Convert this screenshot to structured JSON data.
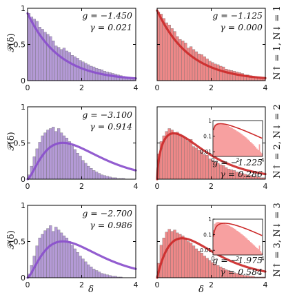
{
  "figure": {
    "ylabel": "𝒫(δ)",
    "xlabel": "δ",
    "row_labels": [
      "N↑ = 1, N↓ = 1",
      "N↑ = 2, N↓ = 2",
      "N↑ = 3, N↓ = 3"
    ],
    "colors": {
      "purple_bar": "#b49ad6",
      "purple_line": "#8a4fcc",
      "red_bar": "#ee8888",
      "red_line": "#cc2a2a",
      "inset_fill": "#f7a0a0"
    }
  },
  "chart_data": [
    {
      "type": "bar",
      "panel": "row1-left",
      "xlim": [
        0,
        4
      ],
      "ylim": [
        0,
        1
      ],
      "xticks": [
        "0",
        "2",
        "4"
      ],
      "yticks": [
        "0",
        "0.5",
        "1"
      ],
      "annotation": [
        "g = −1.450",
        "γ = 0.021"
      ],
      "bin_width": 0.1,
      "values": [
        0.93,
        0.88,
        0.85,
        0.82,
        0.74,
        0.71,
        0.67,
        0.64,
        0.61,
        0.55,
        0.48,
        0.46,
        0.43,
        0.45,
        0.41,
        0.39,
        0.35,
        0.33,
        0.31,
        0.28,
        0.26,
        0.24,
        0.22,
        0.2,
        0.19,
        0.17,
        0.16,
        0.15,
        0.13,
        0.12,
        0.11,
        0.1,
        0.09,
        0.08,
        0.07,
        0.06,
        0.05,
        0.04,
        0.03,
        0.02
      ],
      "fit": {
        "kind": "exp",
        "a": 0.93,
        "b": 0.85
      }
    },
    {
      "type": "bar",
      "panel": "row1-right",
      "xlim": [
        0,
        4
      ],
      "ylim": [
        0,
        1
      ],
      "xticks": [
        "0",
        "2",
        "4"
      ],
      "yticks": [],
      "annotation": [
        "g = −1.125",
        "γ = 0.000"
      ],
      "bin_width": 0.1,
      "values": [
        0.95,
        0.92,
        0.86,
        0.8,
        0.77,
        0.72,
        0.68,
        0.61,
        0.57,
        0.55,
        0.52,
        0.45,
        0.47,
        0.43,
        0.4,
        0.37,
        0.36,
        0.33,
        0.3,
        0.27,
        0.25,
        0.23,
        0.22,
        0.2,
        0.19,
        0.16,
        0.15,
        0.14,
        0.13,
        0.12,
        0.11,
        0.1,
        0.08,
        0.08,
        0.07,
        0.06,
        0.05,
        0.04,
        0.03,
        0.02
      ],
      "fit": {
        "kind": "exp",
        "a": 0.97,
        "b": 0.83
      }
    },
    {
      "type": "bar",
      "panel": "row2-left",
      "xlim": [
        0,
        4
      ],
      "ylim": [
        0,
        1
      ],
      "xticks": [
        "0",
        "2",
        "4"
      ],
      "yticks": [
        "0",
        "0.5",
        "1"
      ],
      "annotation": [
        "g = −3.100",
        "γ = 0.914"
      ],
      "bin_width": 0.1,
      "values": [
        0.06,
        0.18,
        0.31,
        0.42,
        0.51,
        0.6,
        0.64,
        0.68,
        0.7,
        0.72,
        0.66,
        0.7,
        0.64,
        0.6,
        0.57,
        0.52,
        0.46,
        0.41,
        0.36,
        0.32,
        0.26,
        0.22,
        0.18,
        0.15,
        0.12,
        0.1,
        0.08,
        0.06,
        0.05,
        0.04,
        0.03,
        0.02,
        0.02,
        0.01,
        0.01,
        0.01,
        0,
        0,
        0,
        0
      ],
      "fit": {
        "kind": "gamma",
        "a": 1.51,
        "b": 1.15,
        "c": 1.5
      }
    },
    {
      "type": "bar",
      "panel": "row2-right",
      "xlim": [
        0,
        4
      ],
      "ylim": [
        0,
        1
      ],
      "xticks": [
        "0",
        "2",
        "4"
      ],
      "yticks": [],
      "annotation": [
        "g = −1.225",
        "γ = 0.286"
      ],
      "bin_width": 0.1,
      "values": [
        0.35,
        0.52,
        0.6,
        0.66,
        0.7,
        0.68,
        0.64,
        0.65,
        0.62,
        0.6,
        0.56,
        0.52,
        0.55,
        0.45,
        0.43,
        0.4,
        0.38,
        0.34,
        0.33,
        0.28,
        0.26,
        0.24,
        0.22,
        0.2,
        0.19,
        0.16,
        0.14,
        0.13,
        0.12,
        0.1,
        0.09,
        0.08,
        0.07,
        0.06,
        0.05,
        0.04,
        0.04,
        0.03,
        0.02,
        0.02
      ],
      "fit": {
        "kind": "gamma",
        "a": 1.55,
        "b": 0.98,
        "c": 0.6
      },
      "inset": {
        "type": "area",
        "xlim": [
          0,
          4
        ],
        "ylog": true,
        "ylim": [
          0.005,
          1
        ],
        "xticks": [
          "0",
          "2",
          "4"
        ],
        "yticks": [
          "1",
          "0.1",
          "0.01"
        ],
        "values": [
          0.3,
          0.55,
          0.62,
          0.67,
          0.68,
          0.65,
          0.62,
          0.6,
          0.58,
          0.55,
          0.5,
          0.47,
          0.44,
          0.4,
          0.37,
          0.34,
          0.3,
          0.27,
          0.24,
          0.21,
          0.19,
          0.17,
          0.15,
          0.13,
          0.11,
          0.1,
          0.085,
          0.072,
          0.06,
          0.05,
          0.042,
          0.035,
          0.03,
          0.024,
          0.02,
          0.016,
          0.013,
          0.03,
          0.01,
          0.008
        ]
      }
    },
    {
      "type": "bar",
      "panel": "row3-left",
      "xlim": [
        0,
        4
      ],
      "ylim": [
        0,
        1
      ],
      "xticks": [
        "0",
        "2",
        "4"
      ],
      "yticks": [
        "0",
        "0.5",
        "1"
      ],
      "xlabel": "δ",
      "annotation": [
        "g = −2.700",
        "γ = 0.986"
      ],
      "bin_width": 0.1,
      "values": [
        0.05,
        0.17,
        0.3,
        0.44,
        0.55,
        0.6,
        0.65,
        0.68,
        0.72,
        0.64,
        0.7,
        0.66,
        0.62,
        0.58,
        0.55,
        0.5,
        0.45,
        0.4,
        0.35,
        0.3,
        0.26,
        0.22,
        0.18,
        0.15,
        0.12,
        0.1,
        0.08,
        0.06,
        0.05,
        0.04,
        0.03,
        0.02,
        0.02,
        0.01,
        0.01,
        0,
        0,
        0,
        0,
        0
      ],
      "fit": {
        "kind": "gamma",
        "a": 1.51,
        "b": 1.15,
        "c": 1.5
      }
    },
    {
      "type": "bar",
      "panel": "row3-right",
      "xlim": [
        0,
        4
      ],
      "ylim": [
        0,
        1
      ],
      "xticks": [
        "0",
        "2",
        "4"
      ],
      "yticks": [],
      "xlabel": "δ",
      "annotation": [
        "g = −1.975",
        "γ = 0.584"
      ],
      "bin_width": 0.1,
      "values": [
        0.2,
        0.45,
        0.55,
        0.63,
        0.67,
        0.64,
        0.66,
        0.62,
        0.6,
        0.58,
        0.55,
        0.5,
        0.48,
        0.44,
        0.4,
        0.37,
        0.34,
        0.3,
        0.27,
        0.24,
        0.21,
        0.19,
        0.17,
        0.15,
        0.13,
        0.11,
        0.1,
        0.08,
        0.07,
        0.06,
        0.05,
        0.04,
        0.03,
        0.03,
        0.02,
        0.02,
        0.01,
        0.01,
        0.01,
        0.01
      ],
      "fit": {
        "kind": "gamma",
        "a": 1.6,
        "b": 1.08,
        "c": 1.0
      },
      "inset": {
        "type": "area",
        "xlim": [
          0,
          4
        ],
        "ylog": true,
        "ylim": [
          0.005,
          1
        ],
        "xticks": [
          "0",
          "2",
          "4"
        ],
        "yticks": [
          "1",
          "0.1",
          "0.01"
        ],
        "values": [
          0.2,
          0.5,
          0.6,
          0.65,
          0.66,
          0.64,
          0.62,
          0.6,
          0.56,
          0.52,
          0.48,
          0.45,
          0.41,
          0.37,
          0.33,
          0.3,
          0.27,
          0.24,
          0.21,
          0.18,
          0.16,
          0.14,
          0.12,
          0.105,
          0.09,
          0.078,
          0.066,
          0.056,
          0.047,
          0.04,
          0.034,
          0.028,
          0.024,
          0.02,
          0.017,
          0.014,
          0.012,
          0.02,
          0.009,
          0.007
        ]
      }
    }
  ]
}
